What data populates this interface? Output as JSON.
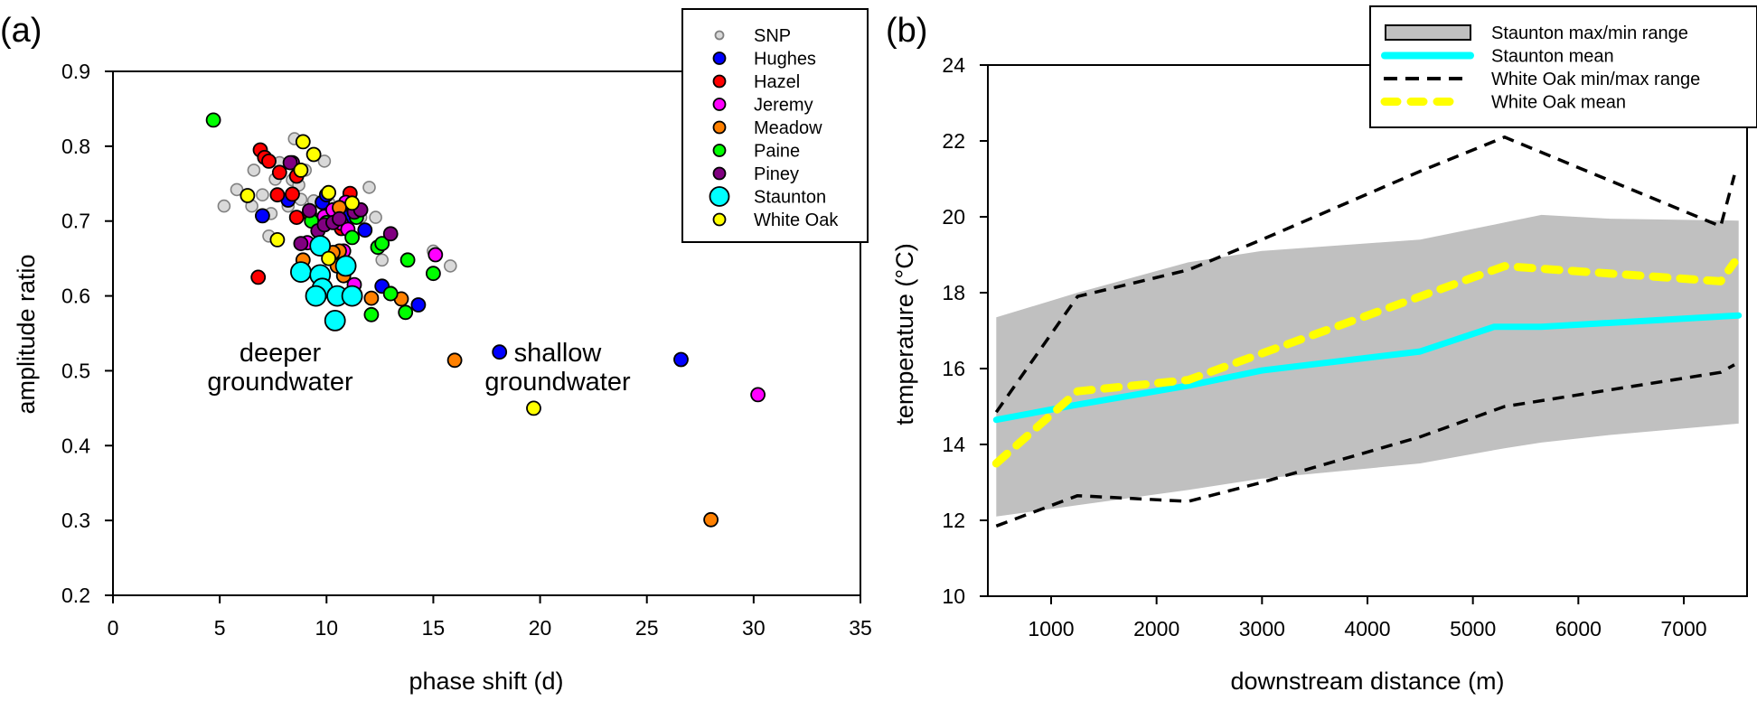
{
  "chart_data": [
    {
      "type": "scatter",
      "panel_label": "(a)",
      "title": "",
      "xlabel": "phase shift (d)",
      "ylabel": "amplitude ratio",
      "xlim": [
        0,
        35
      ],
      "ylim": [
        0.2,
        0.9
      ],
      "xticks": [
        "0",
        "5",
        "10",
        "15",
        "20",
        "25",
        "30",
        "35"
      ],
      "yticks": [
        "0.2",
        "0.3",
        "0.4",
        "0.5",
        "0.6",
        "0.7",
        "0.8",
        "0.9"
      ],
      "legend_position": "top-right",
      "annotations": [
        {
          "lines": [
            "deeper",
            "groundwater"
          ],
          "x": 8.0,
          "y": 0.52
        },
        {
          "lines": [
            "shallow",
            "groundwater"
          ],
          "x": 22.5,
          "y": 0.52
        }
      ],
      "series": [
        {
          "name": "SNP",
          "color": "#d9d9d9",
          "edge": "#808080",
          "size": "small",
          "points": [
            [
              5.2,
              0.72
            ],
            [
              5.8,
              0.742
            ],
            [
              6.5,
              0.72
            ],
            [
              6.6,
              0.768
            ],
            [
              7.0,
              0.735
            ],
            [
              7.3,
              0.68
            ],
            [
              7.4,
              0.71
            ],
            [
              7.6,
              0.756
            ],
            [
              7.8,
              0.778
            ],
            [
              8.2,
              0.72
            ],
            [
              8.4,
              0.755
            ],
            [
              8.5,
              0.81
            ],
            [
              8.7,
              0.748
            ],
            [
              8.8,
              0.729
            ],
            [
              9.0,
              0.768
            ],
            [
              9.4,
              0.727
            ],
            [
              9.6,
              0.702
            ],
            [
              9.9,
              0.78
            ],
            [
              10.1,
              0.725
            ],
            [
              10.6,
              0.7
            ],
            [
              11.0,
              0.715
            ],
            [
              11.6,
              0.705
            ],
            [
              12.0,
              0.745
            ],
            [
              12.3,
              0.705
            ],
            [
              12.6,
              0.648
            ],
            [
              13.0,
              0.605
            ],
            [
              15.0,
              0.66
            ],
            [
              15.8,
              0.64
            ]
          ]
        },
        {
          "name": "Hughes",
          "color": "#0000ff",
          "edge": "#000000",
          "size": "medium",
          "points": [
            [
              7.0,
              0.707
            ],
            [
              8.2,
              0.728
            ],
            [
              9.8,
              0.725
            ],
            [
              10.0,
              0.735
            ],
            [
              10.9,
              0.705
            ],
            [
              11.8,
              0.688
            ],
            [
              12.6,
              0.613
            ],
            [
              14.3,
              0.588
            ],
            [
              18.1,
              0.525
            ],
            [
              26.6,
              0.515
            ]
          ]
        },
        {
          "name": "Hazel",
          "color": "#ff0000",
          "edge": "#000000",
          "size": "medium",
          "points": [
            [
              6.9,
              0.795
            ],
            [
              7.1,
              0.785
            ],
            [
              7.3,
              0.78
            ],
            [
              7.7,
              0.735
            ],
            [
              7.8,
              0.765
            ],
            [
              8.4,
              0.736
            ],
            [
              8.6,
              0.76
            ],
            [
              8.6,
              0.705
            ],
            [
              9.2,
              0.71
            ],
            [
              11.1,
              0.737
            ],
            [
              10.7,
              0.69
            ],
            [
              6.8,
              0.625
            ]
          ]
        },
        {
          "name": "Jeremy",
          "color": "#ff00ff",
          "edge": "#000000",
          "size": "medium",
          "points": [
            [
              8.4,
              0.778
            ],
            [
              9.9,
              0.706
            ],
            [
              10.3,
              0.715
            ],
            [
              10.9,
              0.725
            ],
            [
              10.7,
              0.697
            ],
            [
              11.3,
              0.712
            ],
            [
              11.0,
              0.689
            ],
            [
              9.1,
              0.671
            ],
            [
              10.8,
              0.66
            ],
            [
              11.3,
              0.615
            ],
            [
              15.1,
              0.655
            ],
            [
              30.2,
              0.468
            ]
          ]
        },
        {
          "name": "Meadow",
          "color": "#ff8000",
          "edge": "#000000",
          "size": "medium",
          "points": [
            [
              10.6,
              0.718
            ],
            [
              10.6,
              0.66
            ],
            [
              8.9,
              0.648
            ],
            [
              10.3,
              0.658
            ],
            [
              10.5,
              0.64
            ],
            [
              10.8,
              0.627
            ],
            [
              12.1,
              0.597
            ],
            [
              13.5,
              0.596
            ],
            [
              16.0,
              0.514
            ],
            [
              28.0,
              0.301
            ]
          ]
        },
        {
          "name": "Paine",
          "color": "#00ff00",
          "edge": "#000000",
          "size": "medium",
          "points": [
            [
              4.7,
              0.835
            ],
            [
              9.3,
              0.7
            ],
            [
              10.0,
              0.698
            ],
            [
              11.4,
              0.705
            ],
            [
              11.2,
              0.678
            ],
            [
              12.4,
              0.665
            ],
            [
              12.6,
              0.67
            ],
            [
              13.8,
              0.648
            ],
            [
              15.0,
              0.63
            ],
            [
              12.1,
              0.575
            ],
            [
              13.0,
              0.603
            ],
            [
              13.7,
              0.578
            ]
          ]
        },
        {
          "name": "Piney",
          "color": "#800080",
          "edge": "#000000",
          "size": "medium",
          "points": [
            [
              8.3,
              0.778
            ],
            [
              9.2,
              0.714
            ],
            [
              9.6,
              0.687
            ],
            [
              9.9,
              0.695
            ],
            [
              10.3,
              0.698
            ],
            [
              10.6,
              0.703
            ],
            [
              11.3,
              0.712
            ],
            [
              11.6,
              0.715
            ],
            [
              8.8,
              0.67
            ],
            [
              13.0,
              0.683
            ]
          ]
        },
        {
          "name": "Staunton",
          "color": "#00ffff",
          "edge": "#000000",
          "size": "large",
          "points": [
            [
              9.7,
              0.667
            ],
            [
              8.8,
              0.632
            ],
            [
              9.7,
              0.628
            ],
            [
              10.9,
              0.64
            ],
            [
              9.8,
              0.61
            ],
            [
              9.5,
              0.6
            ],
            [
              10.5,
              0.6
            ],
            [
              11.2,
              0.6
            ],
            [
              10.4,
              0.567
            ]
          ]
        },
        {
          "name": "White Oak",
          "color": "#ffff00",
          "edge": "#000000",
          "size": "medium",
          "points": [
            [
              8.9,
              0.806
            ],
            [
              9.4,
              0.789
            ],
            [
              8.8,
              0.768
            ],
            [
              6.3,
              0.734
            ],
            [
              10.1,
              0.738
            ],
            [
              11.2,
              0.724
            ],
            [
              7.7,
              0.675
            ],
            [
              10.1,
              0.65
            ],
            [
              19.7,
              0.45
            ]
          ]
        }
      ]
    },
    {
      "type": "line",
      "panel_label": "(b)",
      "title": "",
      "xlabel": "downstream distance (m)",
      "ylabel": "temperature (°C)",
      "xlim": [
        400,
        7600
      ],
      "ylim": [
        10,
        24
      ],
      "xticks": [
        "1000",
        "2000",
        "3000",
        "4000",
        "5000",
        "6000",
        "7000"
      ],
      "yticks": [
        "10",
        "12",
        "14",
        "16",
        "18",
        "20",
        "22",
        "24"
      ],
      "legend_position": "top-right",
      "band": {
        "name": "Staunton max/min range",
        "color": "#c0c0c0",
        "x": [
          480,
          1250,
          2300,
          3000,
          4500,
          5300,
          5650,
          6300,
          7520
        ],
        "upper": [
          17.35,
          18.0,
          18.8,
          19.1,
          19.4,
          19.85,
          20.05,
          19.95,
          19.9
        ],
        "lower": [
          12.1,
          12.4,
          12.8,
          13.1,
          13.5,
          13.9,
          14.05,
          14.25,
          14.55
        ]
      },
      "series": [
        {
          "name": "Staunton mean",
          "color": "#00ffff",
          "style": "solid",
          "x": [
            480,
            1250,
            2300,
            3000,
            4500,
            5200,
            5650,
            7520
          ],
          "y": [
            14.65,
            15.05,
            15.55,
            15.95,
            16.45,
            17.1,
            17.1,
            17.4
          ]
        },
        {
          "name": "White Oak min/max range",
          "color": "#000000",
          "style": "dashed",
          "x": [
            480,
            1250,
            2300,
            3000,
            4500,
            5300,
            7350,
            7480
          ],
          "y": [
            14.85,
            17.9,
            18.6,
            19.4,
            21.2,
            22.1,
            19.75,
            21.1
          ]
        },
        {
          "name": "White Oak min/max range (min)",
          "color": "#000000",
          "style": "dashed",
          "x": [
            480,
            1250,
            2300,
            3000,
            4500,
            5300,
            7350,
            7480
          ],
          "y": [
            11.85,
            12.65,
            12.5,
            13.0,
            14.2,
            15.0,
            15.9,
            16.1
          ]
        },
        {
          "name": "White Oak mean",
          "color": "#ffff00",
          "style": "dashed-thick",
          "x": [
            480,
            1250,
            2300,
            3000,
            4500,
            5300,
            7350,
            7480
          ],
          "y": [
            13.5,
            15.4,
            15.7,
            16.4,
            17.9,
            18.7,
            18.3,
            18.8
          ]
        }
      ],
      "legend": [
        {
          "label": "Staunton max/min range",
          "kind": "band"
        },
        {
          "label": "Staunton mean",
          "kind": "solid"
        },
        {
          "label": "White Oak min/max range",
          "kind": "dashed"
        },
        {
          "label": "White Oak mean",
          "kind": "dashed-thick"
        }
      ]
    }
  ]
}
